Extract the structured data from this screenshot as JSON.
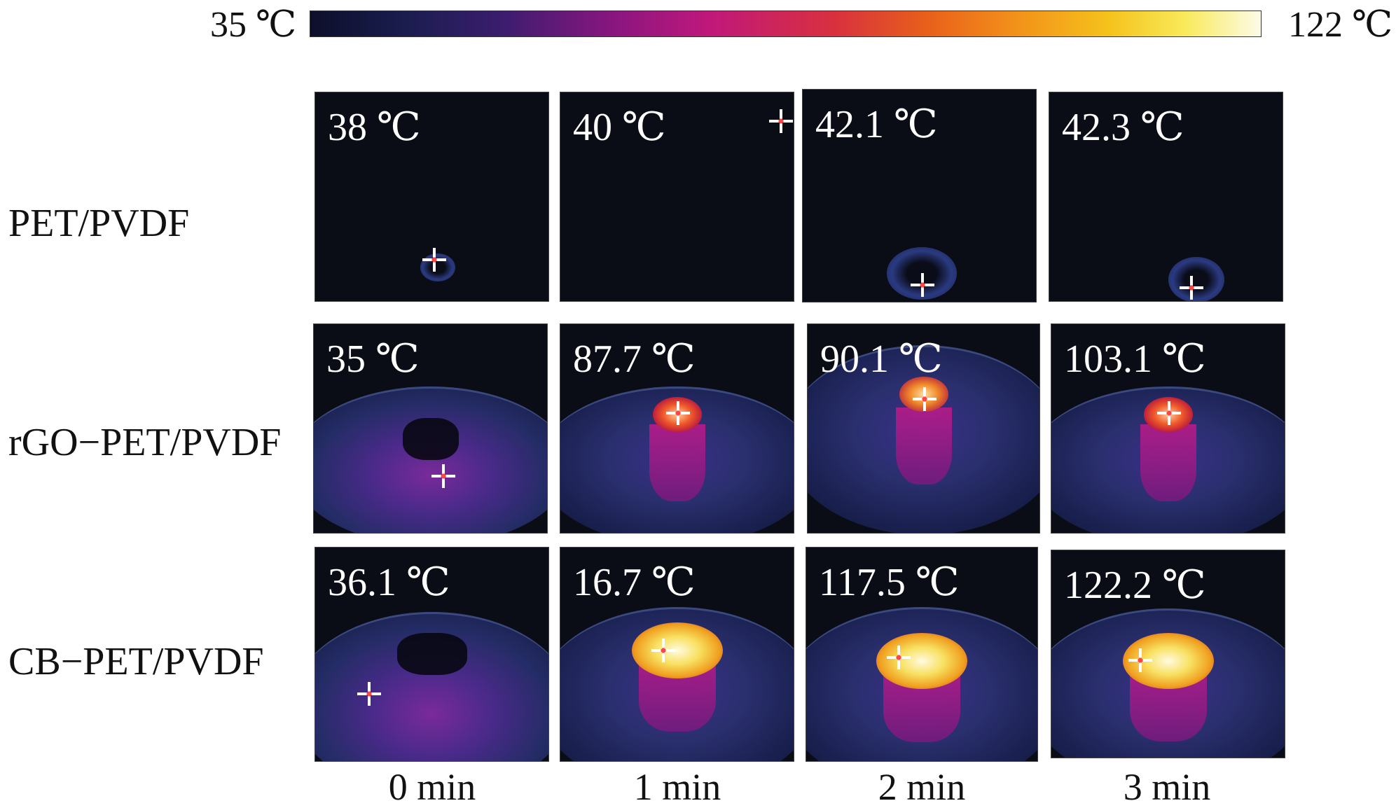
{
  "colorbar": {
    "min_label": "35 ℃",
    "max_label": "122 ℃",
    "colormap": "ironbow",
    "colors": [
      "#0d0f2a",
      "#8a1680",
      "#d8303f",
      "#f2901a",
      "#f8ea5a",
      "#fdfbe8"
    ]
  },
  "columns": [
    "0 min",
    "1 min",
    "2 min",
    "3 min"
  ],
  "rows": [
    {
      "label": "PET/PVDF",
      "temps": [
        "38 ℃",
        "40 ℃",
        "42.1 ℃",
        "42.3 ℃"
      ]
    },
    {
      "label": "rGO−PET/PVDF",
      "temps": [
        "35 ℃",
        "87.7 ℃",
        "90.1 ℃",
        "103.1 ℃"
      ]
    },
    {
      "label": "CB−PET/PVDF",
      "temps": [
        "36.1 ℃",
        "16.7 ℃",
        "117.5 ℃",
        "122.2 ℃"
      ]
    }
  ]
}
